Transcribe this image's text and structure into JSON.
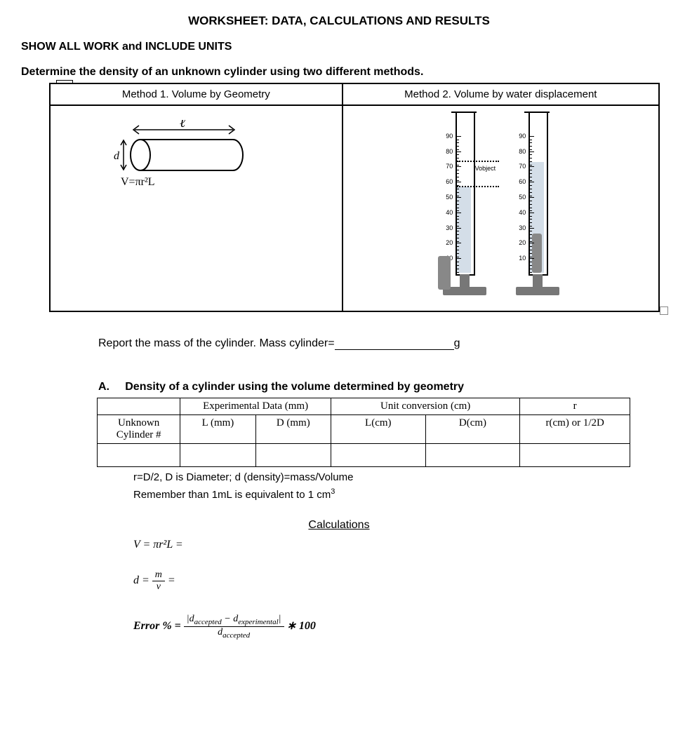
{
  "title": "WORKSHEET:  DATA, CALCULATIONS AND RESULTS",
  "show_work": "SHOW ALL WORK and INCLUDE UNITS",
  "determine": "Determine the density of an unknown cylinder using two different methods.",
  "method1_header": "Method 1.  Volume by Geometry",
  "method2_header": "Method 2.  Volume by water displacement",
  "mass_line_prefix": "Report the mass of the cylinder.   Mass cylinder=",
  "mass_unit": "g",
  "sectionA_label": "A.",
  "sectionA_text": "Density of a cylinder using the volume determined by geometry",
  "tableA": {
    "h_exp": "Experimental Data (mm)",
    "h_uc": "Unit conversion (cm)",
    "h_r": "r",
    "c0": "Unknown Cylinder #",
    "c1": "L (mm)",
    "c2": "D (mm)",
    "c3": "L(cm)",
    "c4": "D(cm)",
    "c5": "r(cm) or 1/2D"
  },
  "note1": "r=D/2, D is Diameter; d (density)=mass/Volume",
  "note2_a": "Remember than 1mL is equivalent to 1 cm",
  "note2_sup": "3",
  "calc_header": "Calculations",
  "formula_v": "V = πr²L =",
  "formula_d_lhs": "d =",
  "formula_d_num": "m",
  "formula_d_den": "v",
  "formula_d_eq": "=",
  "error_lhs": "Error % =",
  "error_num_a": "|d",
  "error_num_sub1": "accepted",
  "error_num_mid": " − d",
  "error_num_sub2": "experimental",
  "error_num_b": "|",
  "error_den_a": "d",
  "error_den_sub": "accepted",
  "error_tail": "∗ 100",
  "cyl_diagram_v": "V=πr²L",
  "vobject_label": "Vobject",
  "grad_ticks": [
    90,
    80,
    70,
    60,
    50,
    40,
    30,
    20,
    10
  ],
  "colors": {
    "water": "rgba(170,190,210,0.5)",
    "object": "#888888",
    "base": "#777777"
  }
}
